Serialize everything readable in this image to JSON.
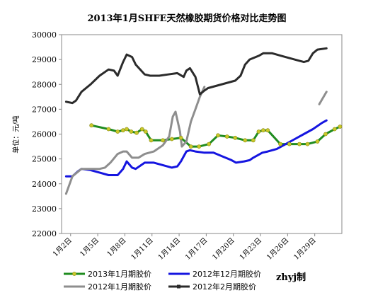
{
  "chart_data": {
    "type": "line",
    "title": "2013年1月SHFE天然橡胶期货价格对比走势图",
    "ylabel": "单位：元/吨",
    "xlabel": "",
    "ylim": [
      22000,
      30000
    ],
    "yticks": [
      22000,
      23000,
      24000,
      25000,
      26000,
      27000,
      28000,
      29000,
      30000
    ],
    "xlim": [
      1,
      32
    ],
    "xticks": [
      {
        "x": 2,
        "label": "1月2日"
      },
      {
        "x": 5,
        "label": "1月5日"
      },
      {
        "x": 8,
        "label": "1月8日"
      },
      {
        "x": 11,
        "label": "1月11日"
      },
      {
        "x": 14,
        "label": "1月14日"
      },
      {
        "x": 17,
        "label": "1月17日"
      },
      {
        "x": 20,
        "label": "1月20日"
      },
      {
        "x": 23,
        "label": "1月23日"
      },
      {
        "x": 26,
        "label": "1月26日"
      },
      {
        "x": 29,
        "label": "1月29日"
      }
    ],
    "grid": false,
    "legend_position": "bottom",
    "watermark": "zhyj制",
    "series": [
      {
        "name": "2013年1月期胶价",
        "color": "#1f8c1f",
        "marker": "circle",
        "marker_color": "#c9c92a",
        "points": [
          [
            4.3,
            26350
          ],
          [
            6.2,
            26200
          ],
          [
            7.2,
            26100
          ],
          [
            7.8,
            26150
          ],
          [
            8.2,
            26200
          ],
          [
            8.7,
            26100
          ],
          [
            9.3,
            26050
          ],
          [
            9.9,
            26200
          ],
          [
            10.3,
            26100
          ],
          [
            10.9,
            25750
          ],
          [
            12.2,
            25750
          ],
          [
            13.2,
            25800
          ],
          [
            14.2,
            25850
          ],
          [
            15.3,
            25500
          ],
          [
            16.2,
            25500
          ],
          [
            17.3,
            25600
          ],
          [
            18.3,
            25950
          ],
          [
            19.3,
            25900
          ],
          [
            20.2,
            25850
          ],
          [
            21.3,
            25750
          ],
          [
            22.2,
            25750
          ],
          [
            22.8,
            26100
          ],
          [
            23.3,
            26150
          ],
          [
            23.8,
            26150
          ],
          [
            25.2,
            25600
          ],
          [
            26.2,
            25600
          ],
          [
            27.3,
            25600
          ],
          [
            28.2,
            25600
          ],
          [
            29.3,
            25700
          ],
          [
            30.2,
            26000
          ],
          [
            31.2,
            26200
          ],
          [
            31.8,
            26300
          ]
        ]
      },
      {
        "name": "2012年12月期胶价",
        "color": "#1515e0",
        "points": [
          [
            1.5,
            24300
          ],
          [
            2.2,
            24300
          ],
          [
            2.8,
            24500
          ],
          [
            3.2,
            24600
          ],
          [
            4.2,
            24550
          ],
          [
            5.2,
            24450
          ],
          [
            6.2,
            24350
          ],
          [
            7.2,
            24350
          ],
          [
            7.8,
            24600
          ],
          [
            8.2,
            24900
          ],
          [
            8.8,
            24650
          ],
          [
            9.2,
            24600
          ],
          [
            10.2,
            24850
          ],
          [
            11.2,
            24850
          ],
          [
            12.2,
            24750
          ],
          [
            13.2,
            24650
          ],
          [
            13.8,
            24700
          ],
          [
            14.2,
            24900
          ],
          [
            14.8,
            25300
          ],
          [
            15.2,
            25350
          ],
          [
            15.8,
            25300
          ],
          [
            16.8,
            25250
          ],
          [
            17.8,
            25250
          ],
          [
            18.8,
            25100
          ],
          [
            19.8,
            24950
          ],
          [
            20.3,
            24850
          ],
          [
            21.2,
            24900
          ],
          [
            21.8,
            24950
          ],
          [
            22.2,
            25050
          ],
          [
            23.2,
            25250
          ],
          [
            23.8,
            25300
          ],
          [
            24.8,
            25400
          ],
          [
            25.8,
            25600
          ],
          [
            26.8,
            25800
          ],
          [
            27.8,
            26000
          ],
          [
            28.8,
            26200
          ],
          [
            29.8,
            26450
          ],
          [
            30.3,
            26550
          ]
        ]
      },
      {
        "name": "2012年1月期胶价",
        "color": "#8e8e8e",
        "points": [
          [
            1.5,
            23600
          ],
          [
            2.2,
            24300
          ],
          [
            3.2,
            24600
          ],
          [
            4.2,
            24600
          ],
          [
            5.2,
            24600
          ],
          [
            5.8,
            24650
          ],
          [
            6.4,
            24850
          ],
          [
            7.2,
            25200
          ],
          [
            7.8,
            25300
          ],
          [
            8.2,
            25300
          ],
          [
            8.8,
            25050
          ],
          [
            9.5,
            25050
          ],
          [
            10.2,
            25200
          ],
          [
            11.2,
            25300
          ],
          [
            12.2,
            25550
          ],
          [
            12.9,
            25900
          ],
          [
            13.3,
            26700
          ],
          [
            13.6,
            26900
          ],
          [
            14.1,
            26100
          ],
          [
            14.3,
            25500
          ],
          [
            14.8,
            25700
          ],
          [
            15.3,
            26500
          ],
          [
            15.8,
            27000
          ],
          [
            16.3,
            27500
          ],
          [
            16.8,
            27900
          ]
        ],
        "segment2": [
          [
            29.5,
            27200
          ],
          [
            30.3,
            27700
          ]
        ]
      },
      {
        "name": "2012年2月期胶价",
        "color": "#2b2b2b",
        "points": [
          [
            1.5,
            27300
          ],
          [
            2.2,
            27250
          ],
          [
            2.6,
            27350
          ],
          [
            3.2,
            27700
          ],
          [
            4.2,
            28000
          ],
          [
            5.2,
            28350
          ],
          [
            6.2,
            28600
          ],
          [
            6.8,
            28550
          ],
          [
            7.2,
            28350
          ],
          [
            7.8,
            28900
          ],
          [
            8.2,
            29200
          ],
          [
            8.8,
            29100
          ],
          [
            9.2,
            28800
          ],
          [
            10.2,
            28400
          ],
          [
            10.8,
            28350
          ],
          [
            11.8,
            28350
          ],
          [
            12.8,
            28400
          ],
          [
            13.8,
            28450
          ],
          [
            14.5,
            28300
          ],
          [
            14.8,
            28550
          ],
          [
            15.2,
            28650
          ],
          [
            15.8,
            28300
          ],
          [
            16.3,
            27600
          ],
          [
            16.8,
            27750
          ],
          [
            17.2,
            27850
          ],
          [
            18.2,
            27950
          ],
          [
            19.2,
            28050
          ],
          [
            20.2,
            28150
          ],
          [
            20.8,
            28350
          ],
          [
            21.3,
            28800
          ],
          [
            21.8,
            29000
          ],
          [
            22.8,
            29150
          ],
          [
            23.3,
            29250
          ],
          [
            24.3,
            29250
          ],
          [
            25.3,
            29150
          ],
          [
            26.3,
            29050
          ],
          [
            27.3,
            28950
          ],
          [
            27.8,
            28900
          ],
          [
            28.3,
            28950
          ],
          [
            28.8,
            29250
          ],
          [
            29.3,
            29400
          ],
          [
            30.3,
            29450
          ]
        ]
      }
    ]
  }
}
